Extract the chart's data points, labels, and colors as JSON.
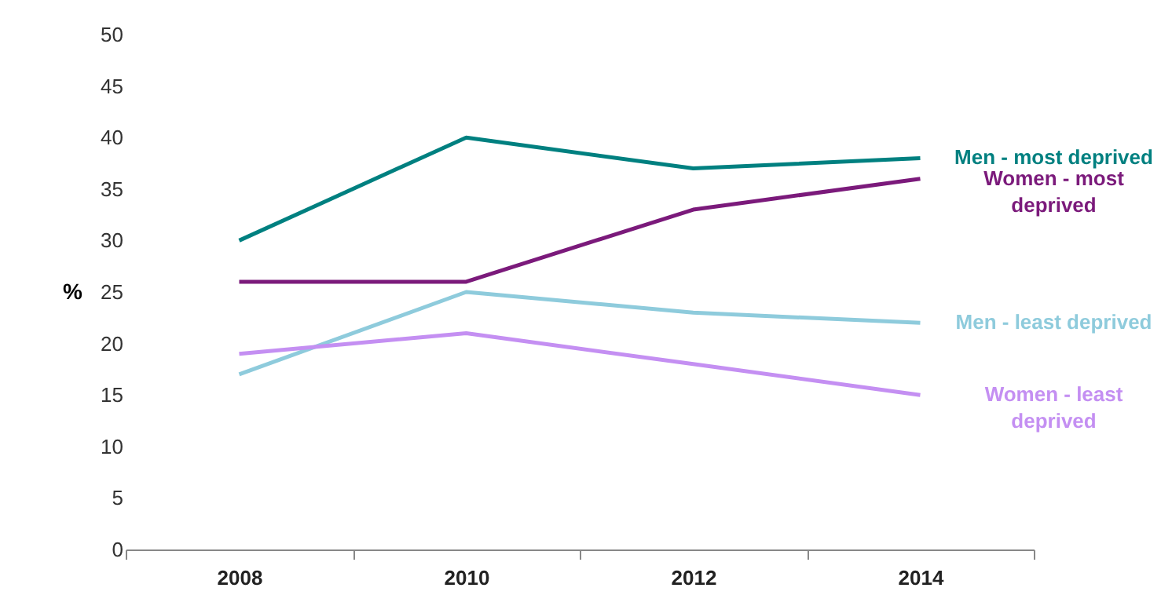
{
  "chart_data": {
    "type": "line",
    "ylabel": "%",
    "categories": [
      "2008",
      "2010",
      "2012",
      "2014"
    ],
    "ylim": [
      0,
      50
    ],
    "yticks": [
      0,
      5,
      10,
      15,
      20,
      25,
      30,
      35,
      40,
      45,
      50
    ],
    "grid": false,
    "legend": false,
    "series": [
      {
        "name": "Men - most deprived",
        "color": "#008080",
        "values": [
          30,
          40,
          37,
          38
        ]
      },
      {
        "name": "Women - most deprived",
        "color": "#7b1a7b",
        "values": [
          26,
          26,
          33,
          36
        ]
      },
      {
        "name": "Men - least deprived",
        "color": "#8ecbdc",
        "values": [
          17,
          25,
          23,
          22
        ]
      },
      {
        "name": "Women - least deprived",
        "color": "#c48ff2",
        "values": [
          19,
          21,
          18,
          15
        ]
      }
    ]
  }
}
